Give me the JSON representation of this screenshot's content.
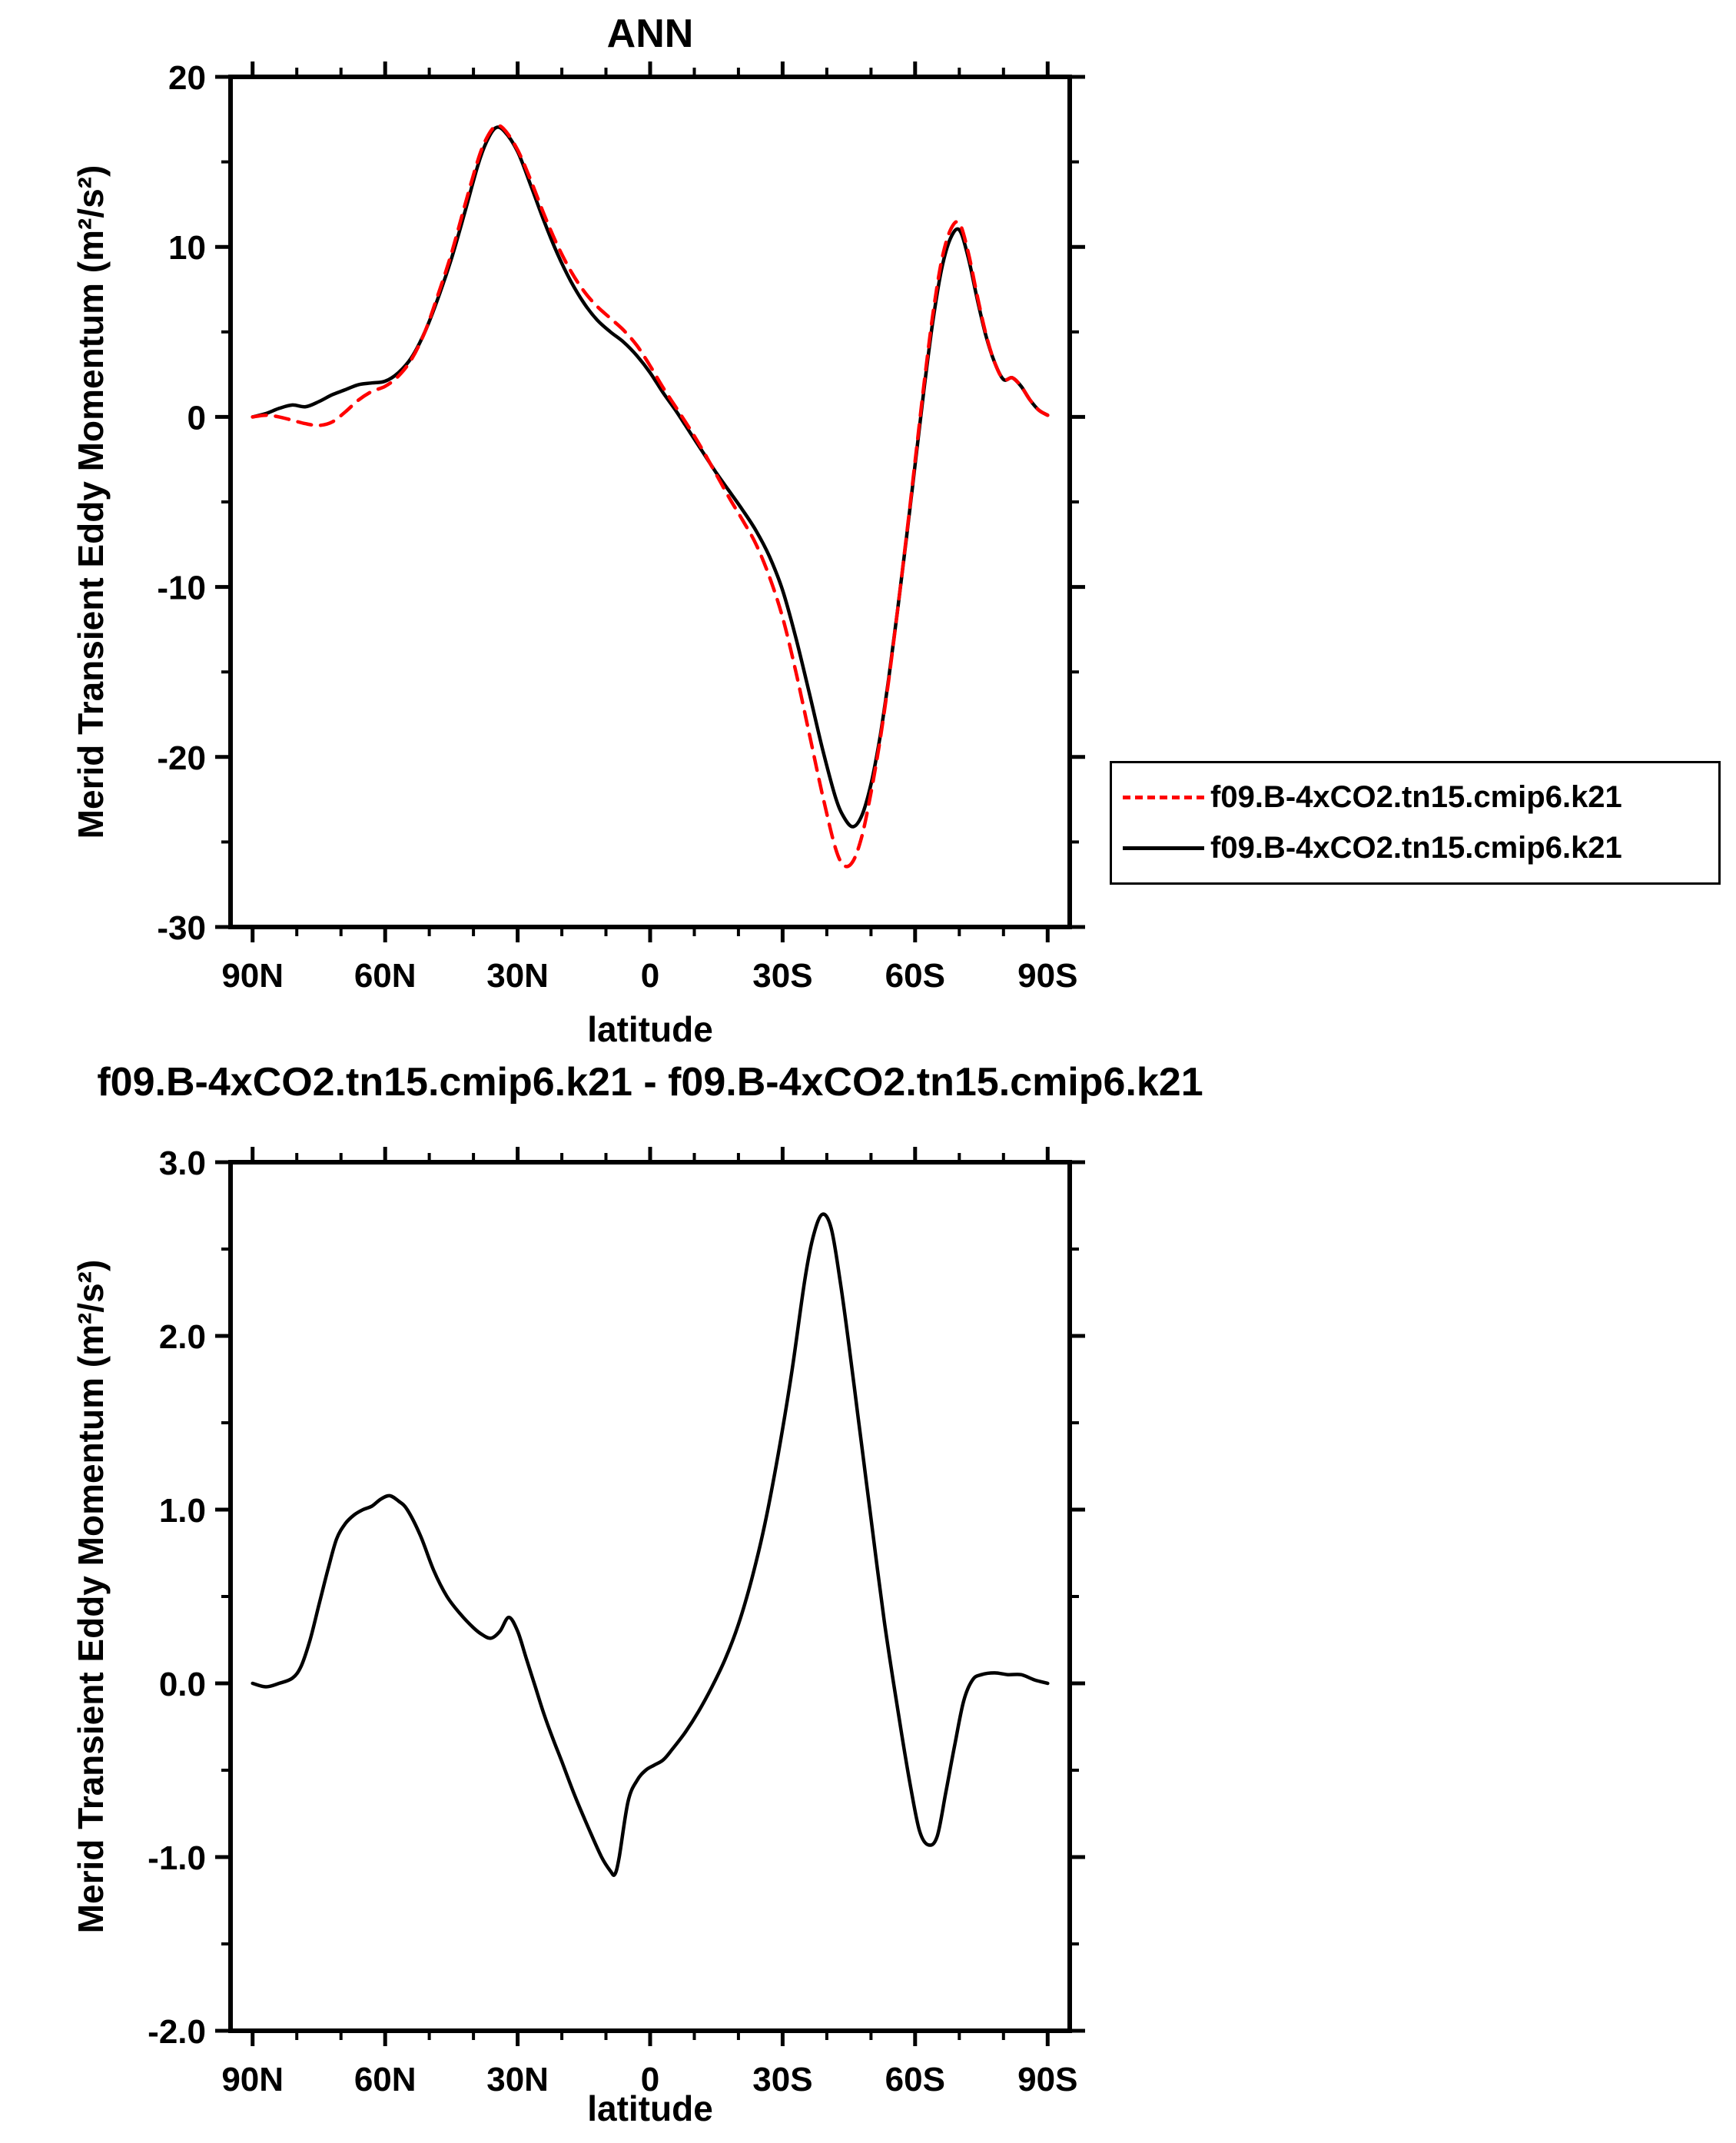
{
  "chart_data": [
    {
      "type": "line",
      "title": "ANN",
      "xlabel": "latitude",
      "ylabel": "Merid Transient Eddy Momentum (m²/s²)",
      "xlim": [
        90,
        -90
      ],
      "ylim": [
        -30,
        20
      ],
      "grid": false,
      "legend_position": "outside-right",
      "xticks": {
        "values": [
          90,
          60,
          30,
          0,
          -30,
          -60,
          -90
        ],
        "labels": [
          "90N",
          "60N",
          "30N",
          "0",
          "30S",
          "60S",
          "90S"
        ]
      },
      "yticks": {
        "values": [
          20,
          10,
          0,
          -10,
          -20,
          -30
        ],
        "labels": [
          "20",
          "10",
          "0",
          "-10",
          "-20",
          "-30"
        ]
      },
      "x": [
        90,
        87,
        84,
        81,
        78,
        75,
        72,
        69,
        66,
        63,
        60,
        57,
        54,
        51,
        48,
        45,
        42,
        39,
        37,
        35,
        33,
        30,
        27,
        24,
        21,
        18,
        15,
        12,
        9,
        6,
        3,
        0,
        -3,
        -6,
        -9,
        -12,
        -15,
        -18,
        -21,
        -24,
        -27,
        -30,
        -33,
        -36,
        -39,
        -42,
        -44,
        -46,
        -48,
        -50,
        -52,
        -54,
        -56,
        -58,
        -60,
        -62,
        -64,
        -66,
        -68,
        -70,
        -72,
        -74,
        -76,
        -78,
        -80,
        -82,
        -84,
        -86,
        -88,
        -90
      ],
      "series": [
        {
          "name": "f09.B-4xCO2.tn15.cmip6.k21",
          "color": "#ff0000",
          "style": "dashed",
          "values": [
            0.0,
            0.1,
            0.0,
            -0.2,
            -0.4,
            -0.5,
            -0.3,
            0.3,
            1.0,
            1.5,
            1.8,
            2.4,
            3.4,
            5.0,
            7.2,
            9.6,
            12.4,
            15.1,
            16.4,
            17.1,
            16.9,
            15.7,
            13.9,
            11.9,
            10.1,
            8.6,
            7.4,
            6.5,
            5.8,
            5.1,
            4.2,
            3.0,
            1.7,
            0.5,
            -0.7,
            -2.0,
            -3.4,
            -4.8,
            -6.1,
            -7.5,
            -9.4,
            -11.8,
            -15.0,
            -18.6,
            -22.2,
            -25.4,
            -26.4,
            -26.1,
            -24.6,
            -22.1,
            -19.1,
            -15.5,
            -11.4,
            -7.1,
            -2.6,
            1.9,
            6.0,
            9.2,
            11.0,
            11.4,
            9.7,
            7.2,
            4.9,
            3.2,
            2.2,
            2.3,
            1.8,
            1.0,
            0.4,
            0.1
          ]
        },
        {
          "name": "f09.B-4xCO2.tn15.cmip6.k21",
          "color": "#000000",
          "style": "solid",
          "values": [
            0.0,
            0.2,
            0.5,
            0.7,
            0.6,
            0.9,
            1.3,
            1.6,
            1.9,
            2.0,
            2.1,
            2.6,
            3.5,
            5.0,
            7.0,
            9.3,
            12.0,
            14.8,
            16.2,
            17.0,
            16.8,
            15.6,
            13.6,
            11.5,
            9.6,
            8.0,
            6.7,
            5.7,
            5.0,
            4.4,
            3.6,
            2.6,
            1.4,
            0.3,
            -0.9,
            -2.1,
            -3.3,
            -4.4,
            -5.5,
            -6.7,
            -8.2,
            -10.2,
            -13.0,
            -16.2,
            -19.5,
            -22.4,
            -23.6,
            -24.1,
            -23.4,
            -21.6,
            -18.9,
            -15.4,
            -11.4,
            -7.2,
            -2.8,
            1.6,
            5.6,
            8.7,
            10.5,
            11.0,
            9.4,
            7.0,
            4.8,
            3.2,
            2.2,
            2.3,
            1.8,
            1.0,
            0.4,
            0.1
          ]
        }
      ]
    },
    {
      "type": "line",
      "title": "f09.B-4xCO2.tn15.cmip6.k21 - f09.B-4xCO2.tn15.cmip6.k21",
      "xlabel": "latitude",
      "ylabel": "Merid Transient Eddy Momentum (m²/s²)",
      "xlim": [
        90,
        -90
      ],
      "ylim": [
        -2.0,
        3.0
      ],
      "grid": false,
      "xticks": {
        "values": [
          90,
          60,
          30,
          0,
          -30,
          -60,
          -90
        ],
        "labels": [
          "90N",
          "60N",
          "30N",
          "0",
          "30S",
          "60S",
          "90S"
        ]
      },
      "yticks": {
        "values": [
          3.0,
          2.0,
          1.0,
          0.0,
          -1.0,
          -2.0
        ],
        "labels": [
          "3.0",
          "2.0",
          "1.0",
          "0.0",
          "-1.0",
          "-2.0"
        ]
      },
      "x": [
        90,
        87,
        84,
        81,
        79,
        77,
        75,
        73,
        71,
        69,
        67,
        65,
        63,
        61,
        59,
        57,
        55,
        52,
        49,
        46,
        43,
        40,
        38,
        36,
        34,
        32,
        30,
        28,
        26,
        24,
        22,
        20,
        17,
        14,
        11,
        9,
        8,
        7,
        5,
        3,
        1,
        -1,
        -3,
        -5,
        -8,
        -11,
        -14,
        -17,
        -20,
        -23,
        -26,
        -29,
        -32,
        -35,
        -37,
        -39,
        -41,
        -43,
        -45,
        -47,
        -49,
        -51,
        -53,
        -55,
        -57,
        -59,
        -61,
        -63,
        -65,
        -67,
        -69,
        -71,
        -73,
        -75,
        -78,
        -81,
        -84,
        -87,
        -90
      ],
      "series": [
        {
          "color": "#000000",
          "style": "solid",
          "values": [
            0.0,
            -0.02,
            0.0,
            0.03,
            0.1,
            0.25,
            0.45,
            0.65,
            0.83,
            0.92,
            0.97,
            1.0,
            1.02,
            1.06,
            1.08,
            1.05,
            1.0,
            0.85,
            0.65,
            0.5,
            0.4,
            0.32,
            0.28,
            0.26,
            0.3,
            0.38,
            0.3,
            0.14,
            -0.02,
            -0.18,
            -0.32,
            -0.45,
            -0.65,
            -0.83,
            -1.0,
            -1.08,
            -1.1,
            -1.0,
            -0.68,
            -0.56,
            -0.5,
            -0.47,
            -0.44,
            -0.38,
            -0.28,
            -0.16,
            -0.02,
            0.14,
            0.34,
            0.6,
            0.92,
            1.32,
            1.78,
            2.32,
            2.58,
            2.7,
            2.62,
            2.32,
            1.95,
            1.55,
            1.15,
            0.75,
            0.36,
            0.02,
            -0.3,
            -0.6,
            -0.85,
            -0.93,
            -0.88,
            -0.62,
            -0.35,
            -0.1,
            0.02,
            0.05,
            0.06,
            0.05,
            0.05,
            0.02,
            0.0
          ]
        }
      ]
    }
  ]
}
